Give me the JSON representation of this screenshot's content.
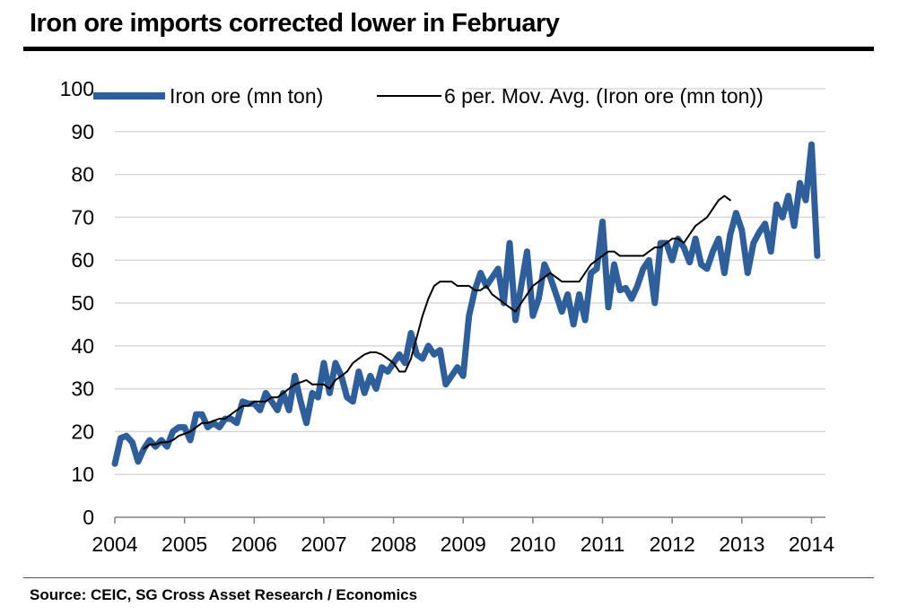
{
  "title": "Iron ore imports corrected lower in February",
  "source": "Source:  CEIC, SG Cross Asset Research / Economics",
  "chart_data": {
    "type": "line",
    "title": "Iron ore imports corrected lower in February",
    "xlabel": "",
    "ylabel": "",
    "ylim": [
      0,
      100
    ],
    "yticks": [
      0,
      10,
      20,
      30,
      40,
      50,
      60,
      70,
      80,
      90,
      100
    ],
    "xlim": [
      2004,
      2014.2
    ],
    "xticks": [
      "2004",
      "2005",
      "2006",
      "2007",
      "2008",
      "2009",
      "2010",
      "2011",
      "2012",
      "2013",
      "2014"
    ],
    "grid": "horizontal",
    "legend_position": "top",
    "colors": {
      "iron_ore": "#2e5f9a",
      "moving_avg": "#000000"
    },
    "series": [
      {
        "name": "Iron ore (mn ton)",
        "color": "#2e5f9a",
        "start": "2004-01",
        "frequency": "monthly",
        "values": [
          12.5,
          18.5,
          19,
          17.5,
          13,
          16,
          18,
          16.5,
          18,
          16.5,
          20,
          21,
          21,
          18,
          24,
          24,
          21,
          22,
          21,
          23,
          23,
          22,
          27,
          26.5,
          26.5,
          25,
          29,
          27,
          25,
          29,
          25,
          33,
          27,
          22,
          29,
          28,
          36,
          29,
          36,
          33,
          28,
          27,
          34,
          29,
          33,
          30,
          35,
          34,
          36,
          38,
          36,
          43,
          38,
          37,
          40,
          38,
          39,
          31,
          33,
          35,
          33,
          47,
          53,
          57,
          54,
          56,
          58,
          50,
          64,
          46,
          54,
          62,
          47,
          51,
          59,
          56,
          52,
          48,
          52,
          45,
          52,
          46,
          57,
          58,
          69,
          49,
          59,
          53,
          53.5,
          51,
          54,
          58,
          60,
          50,
          64,
          64,
          60,
          65,
          63,
          59.5,
          65,
          59,
          58,
          62,
          65,
          57,
          66,
          71,
          67,
          57,
          64,
          66.5,
          68.5,
          62,
          73,
          70,
          75,
          68,
          78,
          74,
          87,
          61
        ]
      },
      {
        "name": "6 per. Mov. Avg. (Iron ore (mn ton))",
        "color": "#000000",
        "start": "2004-06",
        "frequency": "monthly",
        "values": [
          16,
          17,
          17,
          17.5,
          17.5,
          18,
          19,
          19.5,
          20,
          21,
          22,
          22,
          22.5,
          23,
          23,
          24,
          25,
          26,
          26,
          27,
          27,
          27,
          28,
          28,
          29,
          30,
          31,
          31.5,
          32,
          31,
          31,
          31,
          30,
          32,
          33,
          34,
          36,
          37,
          38,
          38.5,
          38.5,
          38,
          37,
          36,
          34,
          34,
          37,
          42,
          47,
          51,
          54,
          55,
          55,
          55,
          54,
          54,
          54,
          53,
          53,
          54,
          52,
          51,
          50,
          49,
          48,
          50,
          52,
          54,
          55,
          56,
          57,
          56,
          55,
          55,
          55,
          55,
          57,
          59,
          60,
          61,
          62,
          62,
          61,
          61,
          61,
          61,
          61,
          62,
          63,
          63,
          64,
          65,
          65,
          64,
          66,
          68,
          69,
          70,
          72,
          74,
          75,
          74
        ]
      }
    ]
  }
}
